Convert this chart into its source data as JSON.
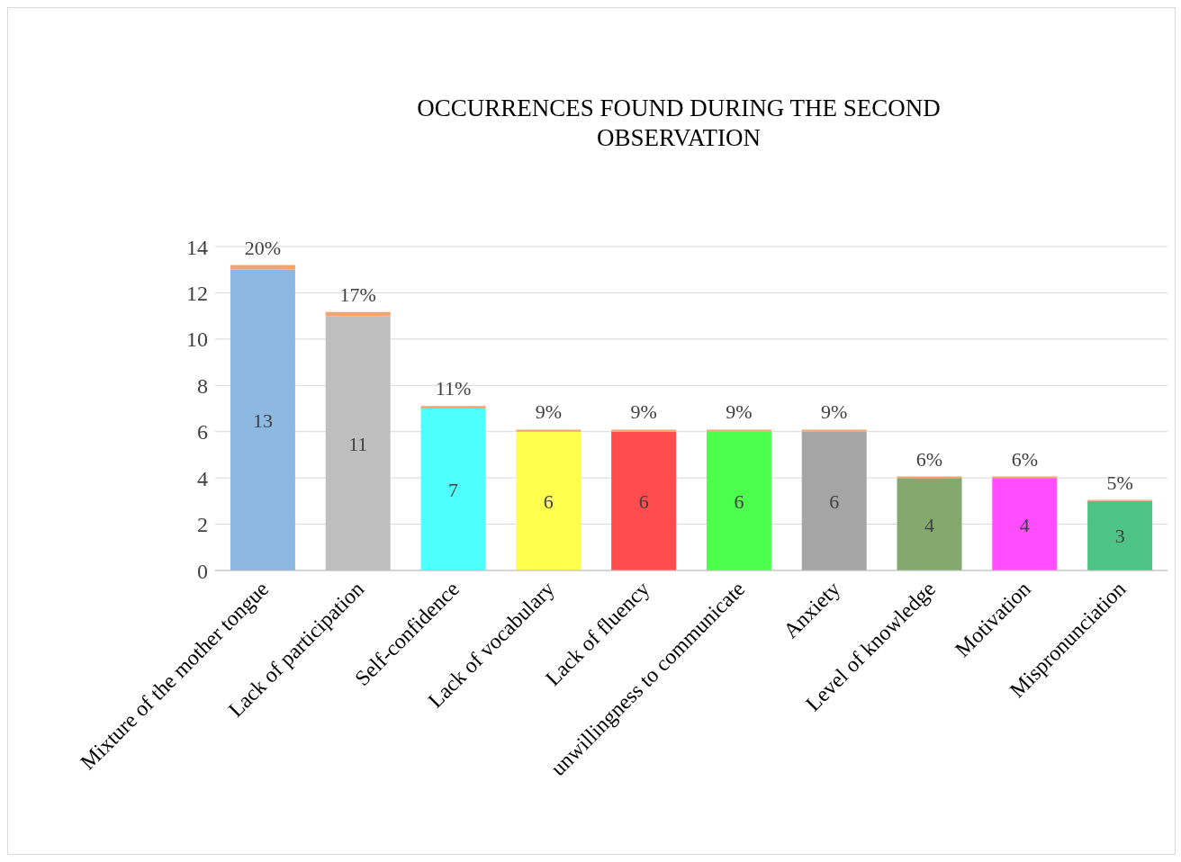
{
  "chart_data": {
    "type": "bar",
    "title": "OCCURRENCES FOUND DURING THE SECOND OBSERVATION",
    "categories": [
      "Mixture of the mother tongue",
      "Lack of participation",
      "Self-confidence",
      "Lack of vocabulary",
      "Lack of fluency",
      "unwillingness to communicate",
      "Anxiety",
      "Level of knowledge",
      "Motivation",
      "Mispronunciation"
    ],
    "stacked": true,
    "series": [
      {
        "values": [
          13,
          11,
          7,
          6,
          6,
          6,
          6,
          4,
          4,
          3
        ],
        "colors": [
          "#8db8e2",
          "#bfbfbf",
          "#4dffff",
          "#ffff4d",
          "#ff4d4d",
          "#4dff4d",
          "#a5a5a5",
          "#84a86e",
          "#ff4dff",
          "#4dc484"
        ],
        "value_labels": [
          "13",
          "11",
          "7",
          "6",
          "6",
          "6",
          "6",
          "4",
          "4",
          "3"
        ]
      },
      {
        "values": [
          0.2,
          0.17,
          0.11,
          0.09,
          0.09,
          0.09,
          0.09,
          0.06,
          0.06,
          0.05
        ],
        "color": "#f4a46c",
        "value_labels": [
          "20%",
          "17%",
          "11%",
          "9%",
          "9%",
          "9%",
          "9%",
          "6%",
          "6%",
          "5%"
        ]
      }
    ],
    "ylim": [
      0,
      14
    ],
    "yticks": [
      0,
      2,
      4,
      6,
      8,
      10,
      12,
      14
    ],
    "grid": "y",
    "legend": false
  }
}
